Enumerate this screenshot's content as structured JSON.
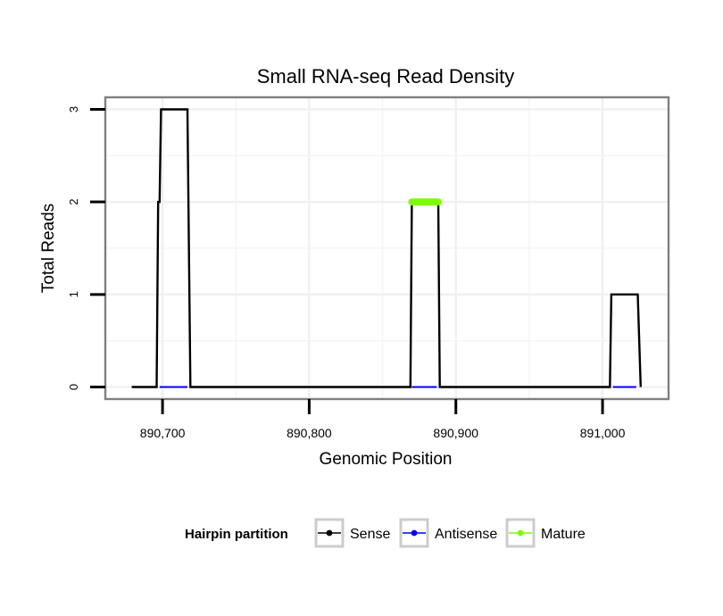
{
  "chart_data": {
    "type": "line",
    "title": "Small RNA-seq Read Density",
    "xlabel": "Genomic Position",
    "ylabel": "Total Reads",
    "xlim": [
      890661,
      891045
    ],
    "ylim": [
      -0.13,
      3.13
    ],
    "x_ticks": [
      890700,
      890800,
      890900,
      891000
    ],
    "x_tick_labels": [
      "890,700",
      "890,800",
      "890,900",
      "891,000"
    ],
    "y_ticks": [
      0,
      1,
      2,
      3
    ],
    "y_tick_labels": [
      "0",
      "1",
      "2",
      "3"
    ],
    "x_minor_gridlines": [
      890750,
      890850,
      890950
    ],
    "y_minor_gridlines": [
      0.5,
      1.5,
      2.5
    ],
    "grid": true,
    "legend": {
      "title": "Hairpin partition",
      "position": "bottom",
      "entries": [
        "Sense",
        "Antisense",
        "Mature"
      ]
    },
    "series": [
      {
        "name": "Sense",
        "color": "#000000",
        "x": [
          890679,
          890696,
          890697,
          890698,
          890699,
          890717,
          890719,
          890869,
          890870,
          890888,
          890889,
          891005,
          891006,
          891024,
          891026
        ],
        "values": [
          0,
          0,
          2,
          2,
          3,
          3,
          0,
          0,
          2,
          2,
          0,
          0,
          1,
          1,
          0
        ]
      },
      {
        "name": "Antisense",
        "color": "#0000ff",
        "segments": [
          {
            "x": [
              890698,
              890717
            ],
            "values": [
              0,
              0
            ]
          },
          {
            "x": [
              890870,
              890887
            ],
            "values": [
              0,
              0
            ]
          },
          {
            "x": [
              891007,
              891023
            ],
            "values": [
              0,
              0
            ]
          }
        ]
      },
      {
        "name": "Mature",
        "color": "#7cfc00",
        "segments": [
          {
            "x": [
              890870,
              890888
            ],
            "values": [
              2,
              2
            ]
          }
        ]
      }
    ]
  }
}
